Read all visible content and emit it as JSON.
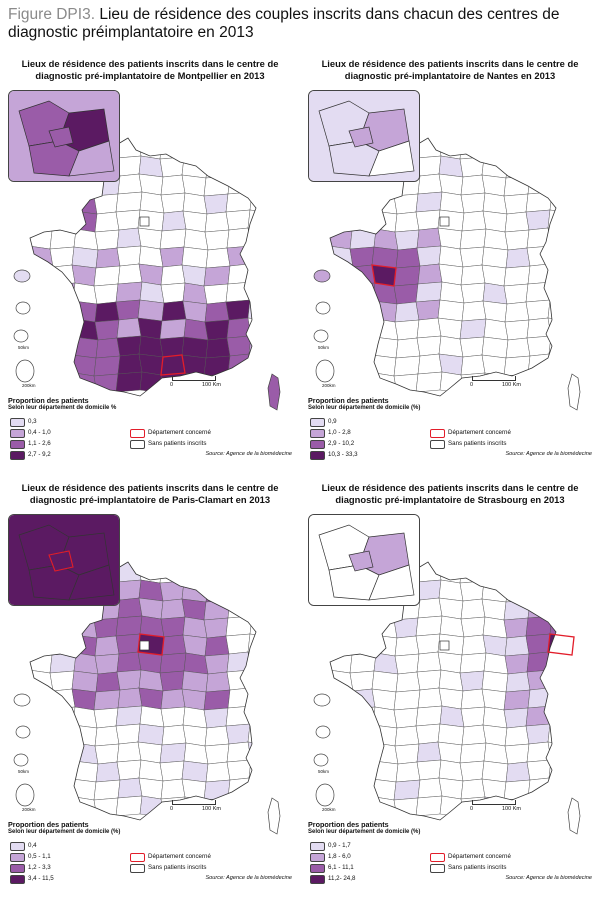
{
  "figure": {
    "label": "Figure DPI3.",
    "title": "Lieu de résidence des couples inscrits dans chacun des centres de diagnostic préimplantatoire en 2013"
  },
  "common": {
    "legend_heading": "Proportion des patients",
    "concerned_label": "Département concerné",
    "none_label": "Sans patients inscrits",
    "source": "Source: Agence de la biomédecine",
    "scale_0": "0",
    "scale_100": "100 Km",
    "km50": "50km",
    "km200": "200km"
  },
  "colors": {
    "c1": "#e3dcf2",
    "c2": "#c5a5d7",
    "c3": "#9a5ca8",
    "c4": "#5b1a62",
    "none": "#ffffff",
    "border": "#444444",
    "concerned": "#e21d2a"
  },
  "panels": [
    {
      "id": "montpellier",
      "title_line1": "Lieux de résidence des patients inscrits dans le centre de",
      "title_line2": "diagnostic pré-implantatoire de Montpellier en 2013",
      "legend_subtitle": "Selon leur département de domicile %",
      "classes": [
        {
          "label": "0,3",
          "color": "#e3dcf2"
        },
        {
          "label": "0,4 - 1,0",
          "color": "#c5a5d7"
        },
        {
          "label": "1,1 - 2,6",
          "color": "#9a5ca8"
        },
        {
          "label": "2,7 - 9,2",
          "color": "#5b1a62"
        }
      ]
    },
    {
      "id": "nantes",
      "title_line1": "Lieux de résidence des patients inscrits dans le centre de",
      "title_line2": "diagnostic pré-implantatoire de Nantes en 2013",
      "legend_subtitle": "Selon leur département de domicile (%)",
      "classes": [
        {
          "label": "0,9",
          "color": "#e3dcf2"
        },
        {
          "label": "1,0 - 2,8",
          "color": "#c5a5d7"
        },
        {
          "label": "2,9 - 10,2",
          "color": "#9a5ca8"
        },
        {
          "label": "10,3 - 33,3",
          "color": "#5b1a62"
        }
      ]
    },
    {
      "id": "paris",
      "title_line1": "Lieux de résidence des patients inscrits dans le centre de",
      "title_line2": "diagnostic pré-implantatoire de Paris-Clamart en 2013",
      "legend_subtitle": "Selon leur département de domicile (%)",
      "classes": [
        {
          "label": "0,4",
          "color": "#e3dcf2"
        },
        {
          "label": "0,5 - 1,1",
          "color": "#c5a5d7"
        },
        {
          "label": "1,2 - 3,3",
          "color": "#9a5ca8"
        },
        {
          "label": "3,4 - 11,5",
          "color": "#5b1a62"
        }
      ]
    },
    {
      "id": "strasbourg",
      "title_line1": "Lieux de résidence des patients inscrits dans le centre de",
      "title_line2": "diagnostic pré-implantatoire de Strasbourg en 2013",
      "legend_subtitle": "Selon leur département de domicile (%)",
      "classes": [
        {
          "label": "0,9 - 1,7",
          "color": "#e3dcf2"
        },
        {
          "label": "1,8 - 6,0",
          "color": "#c5a5d7"
        },
        {
          "label": "6,1 - 11,1",
          "color": "#9a5ca8"
        },
        {
          "label": "11,2- 24,8",
          "color": "#5b1a62"
        }
      ]
    }
  ]
}
